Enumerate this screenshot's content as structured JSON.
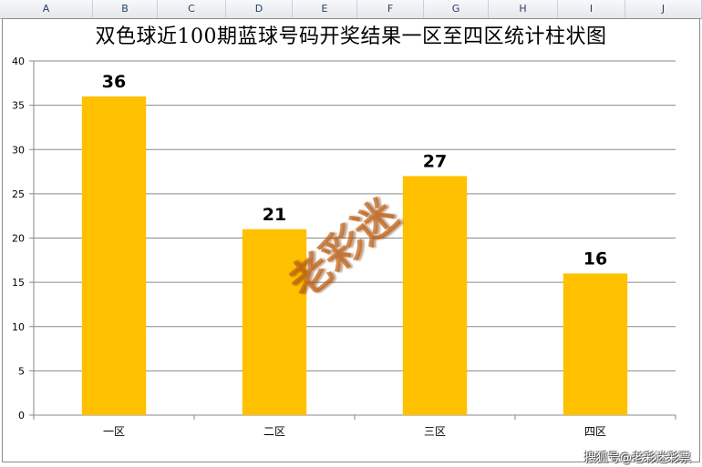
{
  "spreadsheet": {
    "columns": [
      "A",
      "B",
      "C",
      "D",
      "E",
      "F",
      "G",
      "H",
      "I",
      "J"
    ]
  },
  "chart_data": {
    "type": "bar",
    "title": "双色球近100期蓝球号码开奖结果一区至四区统计柱状图",
    "categories": [
      "一区",
      "二区",
      "三区",
      "四区"
    ],
    "values": [
      36,
      21,
      27,
      16
    ],
    "ylim": [
      0,
      40
    ],
    "yticks": [
      0,
      5,
      10,
      15,
      20,
      25,
      30,
      35,
      40
    ],
    "grid": true,
    "legend": "none",
    "bar_color": "#FFC000",
    "data_labels": true
  },
  "watermark": {
    "text": "老彩迷"
  },
  "credit": {
    "text": "搜狐号@老彩迷彩票"
  }
}
